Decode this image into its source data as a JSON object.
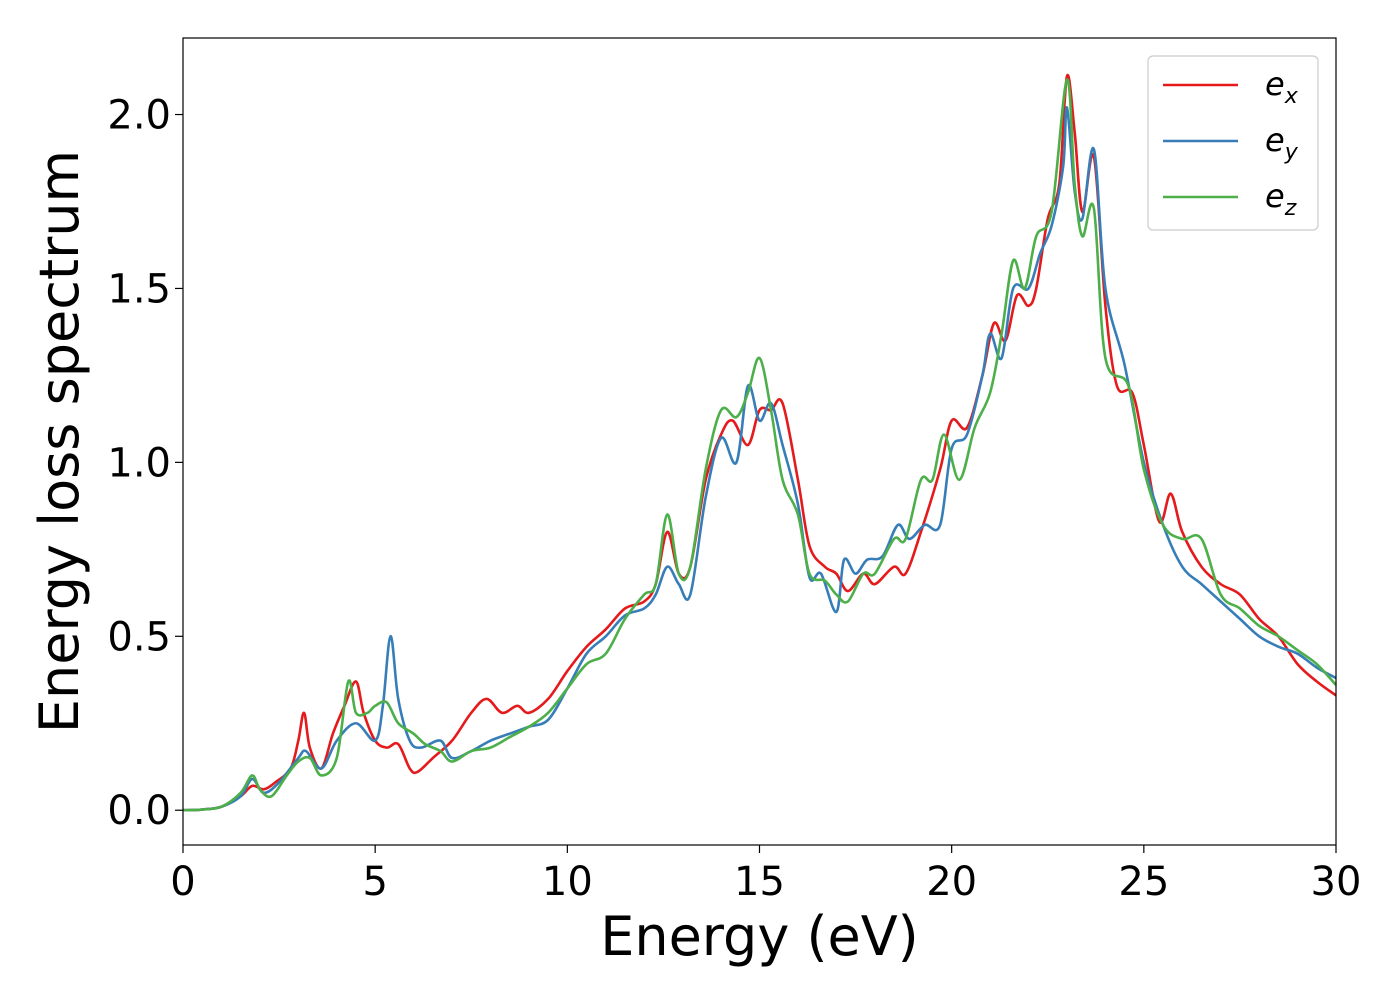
{
  "chart_data": {
    "type": "line",
    "xlabel": "Energy (eV)",
    "ylabel": "Energy loss spectrum",
    "xlim": [
      0,
      30
    ],
    "ylim": [
      -0.1,
      2.22
    ],
    "xticks": [
      0,
      5,
      10,
      15,
      20,
      25,
      30
    ],
    "xtick_labels": [
      "0",
      "5",
      "10",
      "15",
      "20",
      "25",
      "30"
    ],
    "yticks": [
      0.0,
      0.5,
      1.0,
      1.5,
      2.0
    ],
    "ytick_labels": [
      "0.0",
      "0.5",
      "1.0",
      "1.5",
      "2.0"
    ],
    "grid": false,
    "legend_position": "top-right",
    "series": [
      {
        "name": "e_x",
        "label_main": "e",
        "label_sub": "x",
        "color": "#e41a1c",
        "x": [
          0,
          0.5,
          1,
          1.5,
          1.8,
          2.1,
          2.4,
          2.8,
          3.0,
          3.15,
          3.3,
          3.6,
          3.9,
          4.2,
          4.5,
          4.7,
          5.0,
          5.3,
          5.6,
          5.9,
          6.1,
          6.5,
          7.0,
          7.5,
          7.9,
          8.3,
          8.7,
          9.0,
          9.5,
          10.0,
          10.5,
          11.0,
          11.5,
          12.0,
          12.3,
          12.6,
          12.9,
          13.2,
          13.6,
          14.0,
          14.3,
          14.7,
          15.0,
          15.3,
          15.6,
          16.0,
          16.3,
          16.7,
          17.0,
          17.3,
          17.7,
          18.0,
          18.5,
          18.8,
          19.2,
          19.7,
          20.0,
          20.4,
          20.8,
          21.1,
          21.4,
          21.7,
          22.0,
          22.2,
          22.5,
          22.8,
          23.0,
          23.2,
          23.4,
          23.7,
          24.0,
          24.3,
          24.7,
          25.0,
          25.4,
          25.7,
          26.0,
          26.5,
          27.0,
          27.5,
          28.0,
          28.5,
          29.0,
          29.5,
          30.0
        ],
        "y": [
          0.0,
          0.002,
          0.01,
          0.04,
          0.07,
          0.06,
          0.08,
          0.12,
          0.2,
          0.28,
          0.18,
          0.12,
          0.22,
          0.3,
          0.37,
          0.28,
          0.2,
          0.18,
          0.19,
          0.12,
          0.11,
          0.15,
          0.2,
          0.28,
          0.32,
          0.28,
          0.3,
          0.28,
          0.32,
          0.4,
          0.47,
          0.52,
          0.58,
          0.6,
          0.65,
          0.8,
          0.68,
          0.7,
          0.95,
          1.08,
          1.12,
          1.05,
          1.15,
          1.15,
          1.17,
          0.95,
          0.76,
          0.7,
          0.68,
          0.63,
          0.68,
          0.65,
          0.7,
          0.68,
          0.8,
          0.98,
          1.12,
          1.1,
          1.25,
          1.4,
          1.35,
          1.48,
          1.45,
          1.5,
          1.7,
          1.8,
          2.11,
          1.95,
          1.72,
          1.88,
          1.45,
          1.22,
          1.2,
          1.05,
          0.83,
          0.91,
          0.8,
          0.7,
          0.65,
          0.62,
          0.55,
          0.5,
          0.42,
          0.37,
          0.33
        ]
      },
      {
        "name": "e_y",
        "label_main": "e",
        "label_sub": "y",
        "color": "#377eb8",
        "x": [
          0,
          0.5,
          1,
          1.5,
          1.8,
          2.1,
          2.5,
          3.0,
          3.2,
          3.6,
          4.0,
          4.5,
          5.0,
          5.2,
          5.4,
          5.6,
          5.9,
          6.2,
          6.7,
          7.0,
          7.5,
          8.0,
          8.5,
          9.0,
          9.5,
          10.0,
          10.5,
          11.0,
          11.5,
          12.0,
          12.3,
          12.6,
          12.9,
          13.2,
          13.6,
          14.0,
          14.4,
          14.7,
          15.0,
          15.3,
          15.6,
          16.0,
          16.3,
          16.6,
          17.0,
          17.2,
          17.5,
          17.8,
          18.2,
          18.6,
          18.9,
          19.3,
          19.7,
          20.0,
          20.4,
          20.8,
          21.0,
          21.3,
          21.6,
          22.0,
          22.3,
          22.6,
          22.9,
          23.0,
          23.2,
          23.4,
          23.7,
          24.0,
          24.5,
          25.0,
          25.5,
          26.0,
          26.5,
          27.0,
          27.5,
          28.0,
          28.5,
          29.0,
          29.5,
          30.0
        ],
        "y": [
          0.0,
          0.002,
          0.01,
          0.04,
          0.09,
          0.05,
          0.08,
          0.15,
          0.17,
          0.12,
          0.2,
          0.25,
          0.2,
          0.3,
          0.5,
          0.32,
          0.2,
          0.18,
          0.2,
          0.15,
          0.17,
          0.2,
          0.22,
          0.24,
          0.26,
          0.35,
          0.45,
          0.5,
          0.56,
          0.58,
          0.62,
          0.7,
          0.65,
          0.62,
          0.9,
          1.07,
          1.0,
          1.22,
          1.12,
          1.17,
          1.05,
          0.88,
          0.67,
          0.68,
          0.57,
          0.72,
          0.68,
          0.72,
          0.73,
          0.82,
          0.78,
          0.82,
          0.82,
          1.04,
          1.08,
          1.25,
          1.37,
          1.3,
          1.5,
          1.5,
          1.6,
          1.68,
          1.85,
          2.02,
          1.78,
          1.7,
          1.9,
          1.5,
          1.28,
          1.0,
          0.82,
          0.7,
          0.65,
          0.6,
          0.55,
          0.5,
          0.47,
          0.45,
          0.41,
          0.38
        ]
      },
      {
        "name": "e_z",
        "label_main": "e",
        "label_sub": "z",
        "color": "#4daf4a",
        "x": [
          0,
          0.5,
          1,
          1.5,
          1.8,
          2.0,
          2.3,
          2.7,
          3.0,
          3.3,
          3.6,
          4.0,
          4.3,
          4.5,
          4.8,
          5.0,
          5.3,
          5.6,
          6.0,
          6.3,
          6.7,
          7.0,
          7.5,
          8.0,
          8.5,
          9.0,
          9.5,
          10.0,
          10.5,
          11.0,
          11.5,
          12.0,
          12.3,
          12.6,
          12.9,
          13.2,
          13.6,
          14.0,
          14.4,
          14.7,
          15.0,
          15.3,
          15.6,
          16.0,
          16.3,
          16.7,
          17.0,
          17.3,
          17.7,
          18.0,
          18.5,
          18.8,
          19.2,
          19.5,
          19.8,
          20.2,
          20.6,
          21.0,
          21.3,
          21.6,
          21.9,
          22.2,
          22.6,
          23.0,
          23.2,
          23.4,
          23.7,
          24.0,
          24.6,
          25.0,
          25.5,
          26.0,
          26.5,
          27.0,
          27.5,
          28.0,
          28.5,
          29.0,
          29.5,
          30.0
        ],
        "y": [
          0.0,
          0.002,
          0.01,
          0.05,
          0.1,
          0.06,
          0.04,
          0.1,
          0.14,
          0.15,
          0.1,
          0.15,
          0.37,
          0.28,
          0.28,
          0.3,
          0.31,
          0.25,
          0.22,
          0.19,
          0.17,
          0.14,
          0.17,
          0.18,
          0.21,
          0.24,
          0.28,
          0.35,
          0.42,
          0.45,
          0.55,
          0.62,
          0.65,
          0.85,
          0.68,
          0.7,
          0.98,
          1.15,
          1.13,
          1.2,
          1.3,
          1.15,
          0.95,
          0.85,
          0.68,
          0.66,
          0.62,
          0.6,
          0.68,
          0.68,
          0.78,
          0.78,
          0.95,
          0.95,
          1.08,
          0.95,
          1.1,
          1.2,
          1.37,
          1.58,
          1.5,
          1.65,
          1.72,
          2.1,
          1.8,
          1.65,
          1.73,
          1.3,
          1.22,
          0.98,
          0.82,
          0.78,
          0.78,
          0.62,
          0.58,
          0.53,
          0.5,
          0.46,
          0.42,
          0.36
        ]
      }
    ]
  }
}
